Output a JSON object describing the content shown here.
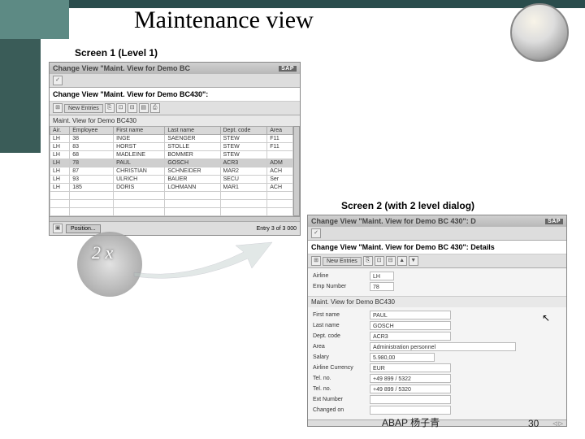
{
  "slide": {
    "title": "Maintenance view",
    "footer_author": "ABAP 杨子青",
    "page_number": "30",
    "header_color": "#5d8a84",
    "header_dark": "#2a4c4c"
  },
  "screen1": {
    "label": "Screen 1 (Level 1)",
    "window_title": "Change View \"Maint. View for Demo BC",
    "subtitle": "Change View \"Maint. View for Demo BC430\":",
    "new_entries_btn": "New Entries",
    "section": "Maint. View for Demo BC430",
    "columns": [
      "Air.",
      "Employee",
      "First name",
      "Last name",
      "Dept. code",
      "Area"
    ],
    "rows": [
      [
        "LH",
        "38",
        "INGE",
        "SAENGER",
        "STEW",
        "F11"
      ],
      [
        "LH",
        "83",
        "HORST",
        "STOLLE",
        "STEW",
        "F11"
      ],
      [
        "LH",
        "68",
        "MADLEINE",
        "BOMMER",
        "STEW",
        ""
      ],
      [
        "LH",
        "78",
        "PAUL",
        "GOSCH",
        "ACR3",
        "ADM"
      ],
      [
        "LH",
        "87",
        "CHRISTIAN",
        "SCHNEIDER",
        "MAR2",
        "ACH"
      ],
      [
        "LH",
        "93",
        "ULRICH",
        "BAUER",
        "SECU",
        "Ser"
      ],
      [
        "LH",
        "185",
        "DORIS",
        "LOHMANN",
        "MAR1",
        "ACH"
      ]
    ],
    "highlight_row": 3,
    "position_btn": "Position...",
    "entry_text": "Entry 3      of 3 000"
  },
  "click": {
    "label": "2 x"
  },
  "screen2": {
    "label": "Screen 2 (with 2 level dialog)",
    "window_title": "Change View \"Maint. View for Demo BC 430\": D",
    "subtitle": "Change View \"Maint. View for Demo BC 430\": Details",
    "new_entries_btn": "New Entries",
    "header_fields": [
      {
        "label": "Airline",
        "value": "LH"
      },
      {
        "label": "Emp Number",
        "value": "78"
      }
    ],
    "section": "Maint. View for Demo BC430",
    "detail_fields": [
      {
        "label": "First name",
        "value": "PAUL"
      },
      {
        "label": "Last name",
        "value": "GOSCH"
      },
      {
        "label": "Dept. code",
        "value": "ACR3"
      },
      {
        "label": "Area",
        "value": "Administration personnel"
      },
      {
        "label": "Salary",
        "value": "5.980,00"
      },
      {
        "label": "Airline Currency",
        "value": "EUR"
      },
      {
        "label": "Tel. no.",
        "value": "+49 899 / 5322"
      },
      {
        "label": "Tel. no.",
        "value": "+49 899 / 5320"
      },
      {
        "label": "Ext Number",
        "value": ""
      },
      {
        "label": "Changed on",
        "value": ""
      }
    ]
  }
}
